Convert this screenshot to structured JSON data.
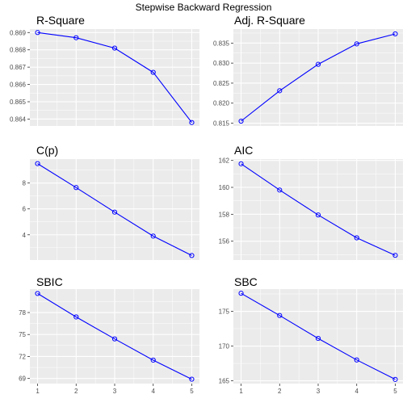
{
  "title": "Stepwise Backward Regression",
  "colors": {
    "line": "#0000ff",
    "panel": "#ebebeb",
    "grid": "#ffffff"
  },
  "chart_data": [
    {
      "type": "line",
      "title": "R-Square",
      "x": [
        1,
        2,
        3,
        4,
        5
      ],
      "y": [
        0.869,
        0.8687,
        0.8681,
        0.8667,
        0.8638
      ],
      "y_ticks": [
        "0.864",
        "0.865",
        "0.866",
        "0.867",
        "0.868",
        "0.869"
      ],
      "y_tick_values": [
        0.864,
        0.865,
        0.866,
        0.867,
        0.868,
        0.869
      ],
      "ylim": [
        0.8636,
        0.8692
      ],
      "x_ticks": []
    },
    {
      "type": "line",
      "title": "Adj. R-Square",
      "x": [
        1,
        2,
        3,
        4,
        5
      ],
      "y": [
        0.8155,
        0.8231,
        0.8297,
        0.8348,
        0.8373
      ],
      "y_ticks": [
        "0.815",
        "0.820",
        "0.825",
        "0.830",
        "0.835"
      ],
      "y_tick_values": [
        0.815,
        0.82,
        0.825,
        0.83,
        0.835
      ],
      "ylim": [
        0.8143,
        0.8385
      ],
      "x_ticks": []
    },
    {
      "type": "line",
      "title": "C(p)",
      "x": [
        1,
        2,
        3,
        4,
        5
      ],
      "y": [
        9.5,
        7.65,
        5.75,
        3.9,
        2.4
      ],
      "y_ticks": [
        "4",
        "6",
        "8"
      ],
      "y_tick_values": [
        4,
        6,
        8
      ],
      "ylim": [
        2.05,
        9.85
      ],
      "x_ticks": []
    },
    {
      "type": "line",
      "title": "AIC",
      "x": [
        1,
        2,
        3,
        4,
        5
      ],
      "y": [
        161.75,
        159.8,
        157.95,
        156.25,
        154.95
      ],
      "y_ticks": [
        "156",
        "158",
        "160",
        "162"
      ],
      "y_tick_values": [
        156,
        158,
        160,
        162
      ],
      "ylim": [
        154.6,
        162.1
      ],
      "x_ticks": []
    },
    {
      "type": "line",
      "title": "SBIC",
      "x": [
        1,
        2,
        3,
        4,
        5
      ],
      "y": [
        80.6,
        77.4,
        74.4,
        71.5,
        68.9
      ],
      "y_ticks": [
        "69",
        "72",
        "75",
        "78"
      ],
      "y_tick_values": [
        69,
        72,
        75,
        78
      ],
      "ylim": [
        68.3,
        81.2
      ],
      "x_ticks": [
        "1",
        "2",
        "3",
        "4",
        "5"
      ]
    },
    {
      "type": "line",
      "title": "SBC",
      "x": [
        1,
        2,
        3,
        4,
        5
      ],
      "y": [
        177.6,
        174.4,
        171.1,
        168.0,
        165.2
      ],
      "y_ticks": [
        "165",
        "170",
        "175"
      ],
      "y_tick_values": [
        165,
        170,
        175
      ],
      "ylim": [
        164.6,
        178.2
      ],
      "x_ticks": [
        "1",
        "2",
        "3",
        "4",
        "5"
      ]
    }
  ]
}
